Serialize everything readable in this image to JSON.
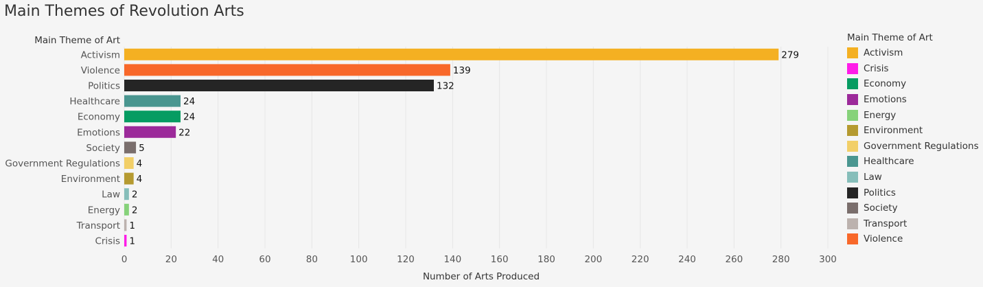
{
  "chart_data": {
    "type": "bar",
    "orientation": "horizontal",
    "title": "Main Themes of Revolution Arts",
    "ylabel": "Main Theme of Art",
    "xlabel": "Number of Arts Produced",
    "xlim": [
      0,
      300
    ],
    "xticks": [
      0,
      20,
      40,
      60,
      80,
      100,
      120,
      140,
      160,
      180,
      200,
      220,
      240,
      260,
      280,
      300
    ],
    "grid": "vertical",
    "categories": [
      "Activism",
      "Violence",
      "Politics",
      "Healthcare",
      "Economy",
      "Emotions",
      "Society",
      "Government Regulations",
      "Environment",
      "Law",
      "Energy",
      "Transport",
      "Crisis"
    ],
    "values": [
      279,
      139,
      132,
      24,
      24,
      22,
      5,
      4,
      4,
      2,
      2,
      1,
      1
    ],
    "colors": {
      "Activism": "#F4B022",
      "Crisis": "#FF1CE8",
      "Economy": "#069C62",
      "Emotions": "#9C2A9A",
      "Energy": "#86D27A",
      "Environment": "#B59A30",
      "Government Regulations": "#F2CF68",
      "Healthcare": "#4A9690",
      "Law": "#86BEBA",
      "Politics": "#252525",
      "Society": "#7A6E6C",
      "Transport": "#BCB2AE",
      "Violence": "#F8682A"
    },
    "legend": {
      "title": "Main Theme of Art",
      "position": "right",
      "items": [
        "Activism",
        "Crisis",
        "Economy",
        "Emotions",
        "Energy",
        "Environment",
        "Government Regulations",
        "Healthcare",
        "Law",
        "Politics",
        "Society",
        "Transport",
        "Violence"
      ]
    }
  }
}
